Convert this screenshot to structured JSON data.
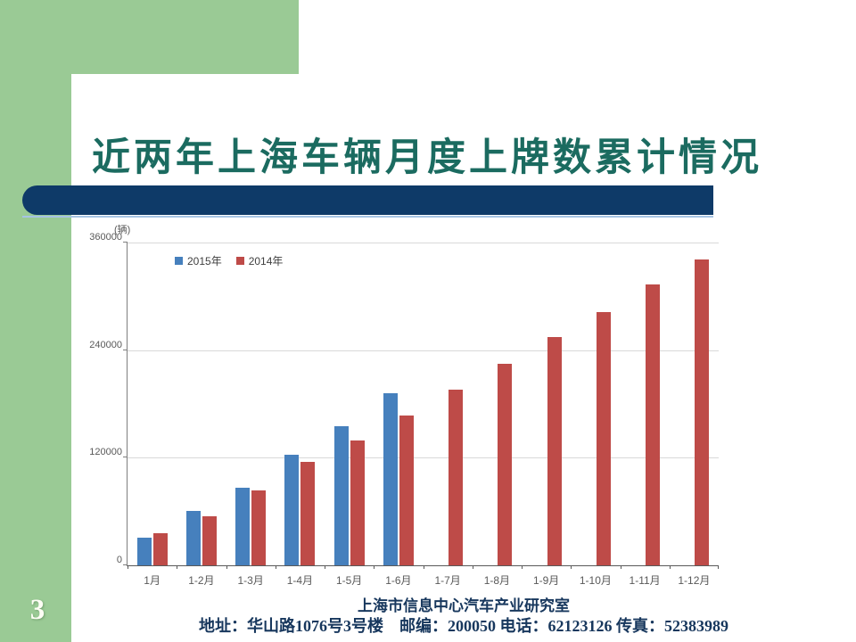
{
  "slide": {
    "title": "近两年上海车辆月度上牌数累计情况",
    "page_number": "3",
    "footer": {
      "org": "上海市信息中心汽车产业研究室",
      "address": "地址：华山路1076号3号楼　邮编：200050 电话：62123126 传真：52383989"
    },
    "colors": {
      "accent_green": "#9ACA95",
      "navy_bar": "#0E3A68",
      "navy_underline": "#A7C4E4",
      "title_text": "#1B6B60",
      "footer_text": "#17375D"
    }
  },
  "chart_data": {
    "type": "bar",
    "title": "",
    "unit_label": "(辆)",
    "categories": [
      "1月",
      "1-2月",
      "1-3月",
      "1-4月",
      "1-5月",
      "1-6月",
      "1-7月",
      "1-8月",
      "1-9月",
      "1-10月",
      "1-11月",
      "1-12月"
    ],
    "series": [
      {
        "name": "2015年",
        "color": "#4680BD",
        "values": [
          31000,
          61000,
          87000,
          123000,
          155000,
          192000,
          null,
          null,
          null,
          null,
          null,
          null
        ]
      },
      {
        "name": "2014年",
        "color": "#BE4B48",
        "values": [
          36000,
          55000,
          84000,
          115000,
          139000,
          167000,
          196000,
          225000,
          255000,
          282000,
          313000,
          341000
        ]
      }
    ],
    "xlabel": "",
    "ylabel": "",
    "ylim": [
      0,
      360000
    ],
    "yticks": [
      0,
      120000,
      240000,
      360000
    ],
    "grid": "horizontal",
    "legend_position": "top-left-inside"
  }
}
